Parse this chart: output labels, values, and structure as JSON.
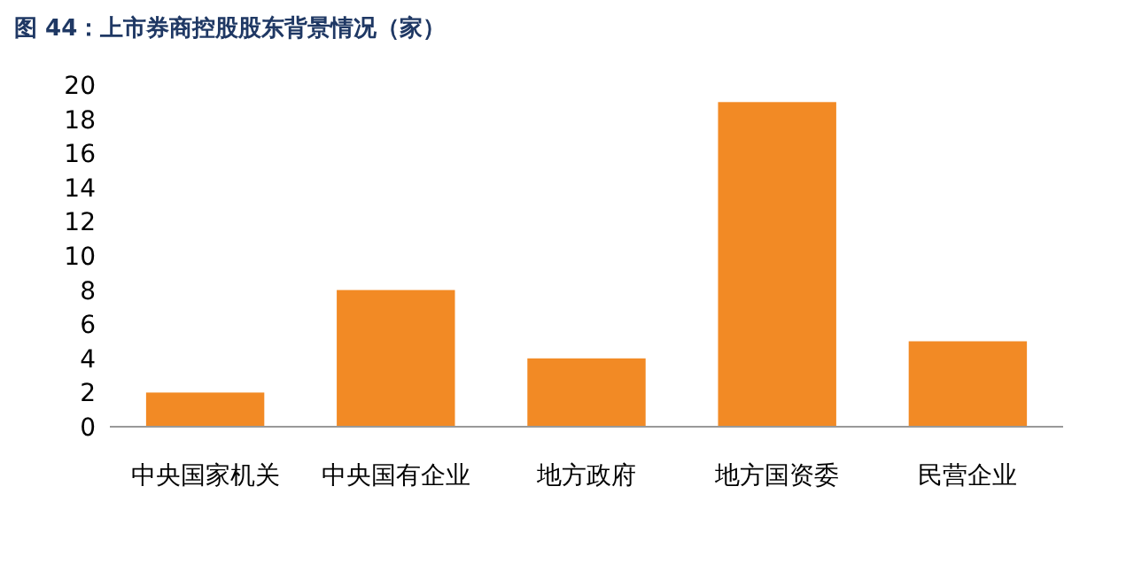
{
  "chart_data": {
    "type": "bar",
    "title": "图 44：上市券商控股股东背景情况（家）",
    "categories": [
      "中央国家机关",
      "中央国有企业",
      "地方政府",
      "地方国资委",
      "民营企业"
    ],
    "values": [
      2,
      8,
      4,
      19,
      5
    ],
    "color": "#f28a25",
    "ylim": [
      0,
      20
    ],
    "yticks": [
      0,
      2,
      4,
      6,
      8,
      10,
      12,
      14,
      16,
      18,
      20
    ],
    "grid": false
  }
}
